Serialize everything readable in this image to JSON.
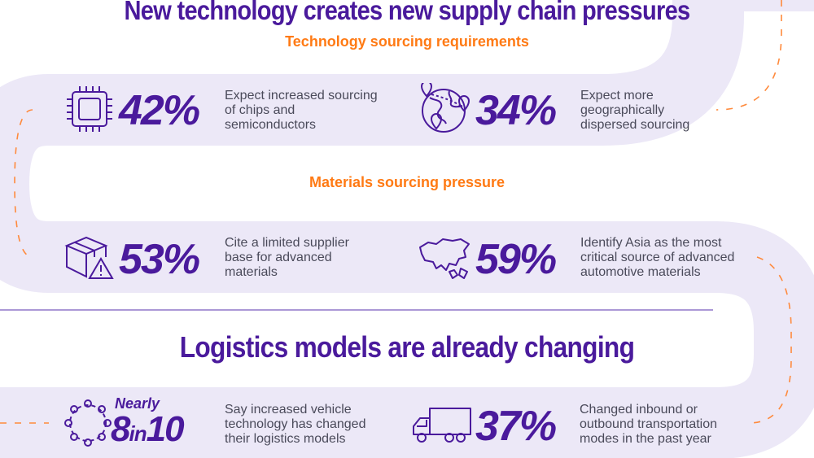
{
  "section1": {
    "title": "New technology creates new supply chain pressures",
    "subtitle_tech": "Technology sourcing requirements",
    "subtitle_materials": "Materials sourcing pressure"
  },
  "section2": {
    "title": "Logistics models are already changing"
  },
  "stats": [
    {
      "icon": "chip-icon",
      "value": "42%",
      "text": "Expect increased sourcing of chips and semiconductors"
    },
    {
      "icon": "globe-pins-icon",
      "value": "34%",
      "text": "Expect more geographically dispersed sourcing"
    },
    {
      "icon": "box-warning-icon",
      "value": "53%",
      "text": "Cite a limited supplier base for advanced materials"
    },
    {
      "icon": "asia-map-icon",
      "value": "59%",
      "text": "Identify Asia as the most critical source of advanced automotive materials"
    },
    {
      "icon": "people-circle-icon",
      "prefix": "Nearly",
      "value_a": "8",
      "value_mid": "in",
      "value_b": "10",
      "text": "Say increased vehicle technology has changed their logistics models"
    },
    {
      "icon": "truck-icon",
      "value": "37%",
      "text": "Changed inbound or outbound transportation modes in the past year"
    }
  ],
  "colors": {
    "purple": "#4a1a9c",
    "orange": "#ff7a14",
    "road": "#ece8f7",
    "text": "#4a4a5a"
  }
}
